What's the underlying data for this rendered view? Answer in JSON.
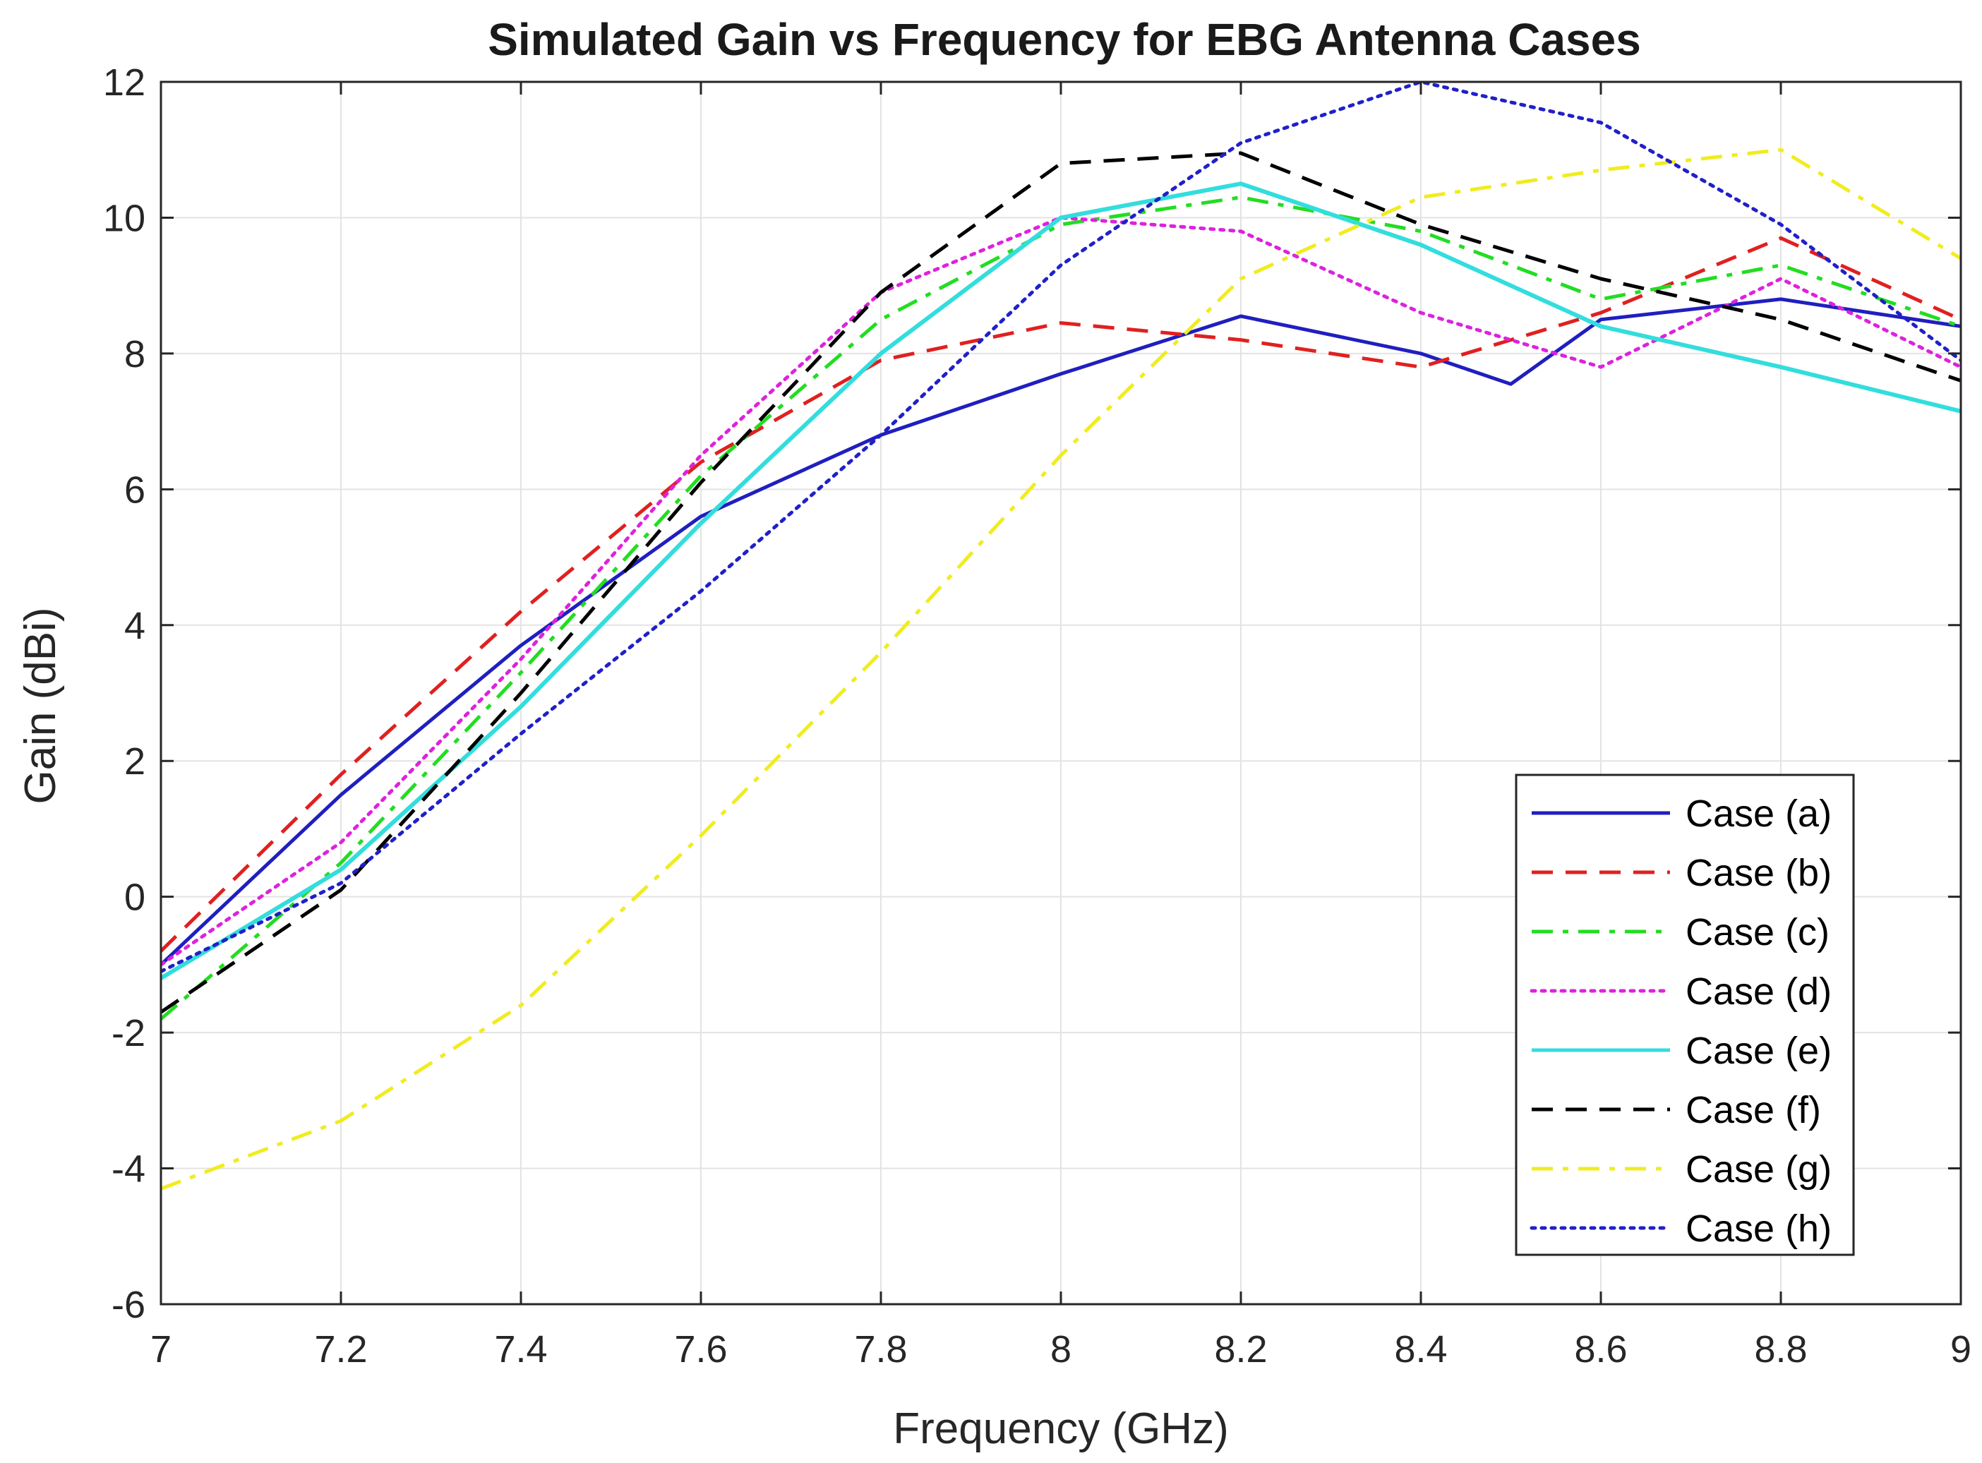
{
  "chart_data": {
    "type": "line",
    "title": "Simulated Gain vs Frequency for EBG Antenna Cases",
    "xlabel": "Frequency (GHz)",
    "ylabel": "Gain (dBi)",
    "xlim": [
      7,
      9
    ],
    "ylim": [
      -6,
      12
    ],
    "xticks": [
      "7",
      "7.2",
      "7.4",
      "7.6",
      "7.8",
      "8",
      "8.2",
      "8.4",
      "8.6",
      "8.8",
      "9"
    ],
    "yticks": [
      "-6",
      "-4",
      "-2",
      "0",
      "2",
      "4",
      "6",
      "8",
      "10",
      "12"
    ],
    "grid": true,
    "legend_position": "bottom-right",
    "series": [
      {
        "name": "Case (a)",
        "color": "#1f1fbf",
        "style": "solid",
        "x": [
          7,
          7.2,
          7.4,
          7.6,
          7.8,
          8,
          8.2,
          8.4,
          8.5,
          8.6,
          8.8,
          9
        ],
        "y": [
          -1.0,
          1.5,
          3.7,
          5.6,
          6.8,
          7.7,
          8.55,
          8.0,
          7.55,
          8.5,
          8.8,
          8.4
        ]
      },
      {
        "name": "Case (b)",
        "color": "#e02020",
        "style": "dashed",
        "x": [
          7,
          7.2,
          7.4,
          7.6,
          7.8,
          8,
          8.2,
          8.4,
          8.6,
          8.8,
          9
        ],
        "y": [
          -0.8,
          1.8,
          4.2,
          6.4,
          7.9,
          8.45,
          8.2,
          7.8,
          8.6,
          9.7,
          8.5
        ]
      },
      {
        "name": "Case (c)",
        "color": "#22dd22",
        "style": "dashdot",
        "x": [
          7,
          7.2,
          7.4,
          7.6,
          7.8,
          8,
          8.2,
          8.4,
          8.6,
          8.8,
          9
        ],
        "y": [
          -1.8,
          0.5,
          3.3,
          6.2,
          8.5,
          9.9,
          10.3,
          9.8,
          8.8,
          9.3,
          8.4
        ]
      },
      {
        "name": "Case (d)",
        "color": "#dd22dd",
        "style": "dotted",
        "x": [
          7,
          7.2,
          7.4,
          7.6,
          7.8,
          8,
          8.2,
          8.4,
          8.6,
          8.8,
          9
        ],
        "y": [
          -1.0,
          0.8,
          3.5,
          6.5,
          8.9,
          10.0,
          9.8,
          8.6,
          7.8,
          9.1,
          7.8
        ]
      },
      {
        "name": "Case (e)",
        "color": "#33dddd",
        "style": "solid",
        "x": [
          7,
          7.2,
          7.4,
          7.6,
          7.8,
          8,
          8.2,
          8.4,
          8.6,
          8.8,
          9
        ],
        "y": [
          -1.2,
          0.4,
          2.8,
          5.5,
          8.0,
          10.0,
          10.5,
          9.6,
          8.4,
          7.8,
          7.15
        ]
      },
      {
        "name": "Case (f)",
        "color": "#000000",
        "style": "dashed",
        "x": [
          7,
          7.2,
          7.4,
          7.6,
          7.8,
          8,
          8.2,
          8.4,
          8.6,
          8.8,
          9
        ],
        "y": [
          -1.7,
          0.1,
          3.0,
          6.1,
          8.9,
          10.8,
          10.95,
          9.9,
          9.1,
          8.5,
          7.6
        ]
      },
      {
        "name": "Case (g)",
        "color": "#f0ec20",
        "style": "dashdot",
        "x": [
          7,
          7.2,
          7.4,
          7.6,
          7.8,
          8,
          8.2,
          8.4,
          8.6,
          8.8,
          9
        ],
        "y": [
          -4.3,
          -3.3,
          -1.6,
          0.9,
          3.6,
          6.5,
          9.1,
          10.3,
          10.7,
          11.0,
          9.4
        ]
      },
      {
        "name": "Case (h)",
        "color": "#2020c8",
        "style": "dotted",
        "x": [
          7,
          7.2,
          7.4,
          7.6,
          7.8,
          8,
          8.2,
          8.4,
          8.6,
          8.8,
          9
        ],
        "y": [
          -1.1,
          0.2,
          2.4,
          4.5,
          6.8,
          9.3,
          11.1,
          12.0,
          11.4,
          9.9,
          7.9
        ]
      }
    ]
  }
}
